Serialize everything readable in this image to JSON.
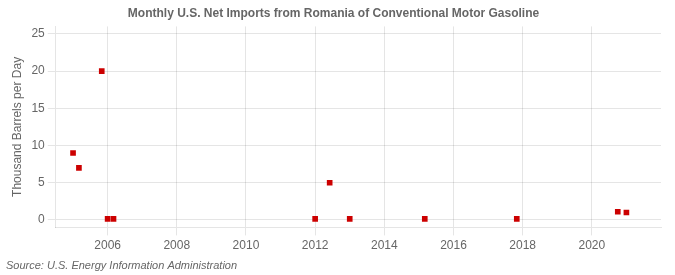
{
  "chart_data": {
    "type": "scatter",
    "title": "Monthly U.S. Net Imports from Romania of Conventional Motor Gasoline",
    "ylabel": "Thousand Barrels per Day",
    "annotations": [
      "Source: U.S. Energy Information Administration"
    ],
    "x": [
      2005.0,
      2005.17,
      2005.83,
      2006.0,
      2006.17,
      2012.0,
      2012.42,
      2013.0,
      2015.17,
      2017.83,
      2020.75,
      2021.0
    ],
    "values": [
      9.0,
      7.0,
      20.0,
      0.15,
      0.15,
      0.15,
      5.0,
      0.15,
      0.15,
      0.15,
      1.1,
      1.0
    ],
    "color": "#cc0000",
    "marker": "square",
    "xlim": [
      2004.5,
      2022.0
    ],
    "ylim": [
      -1,
      26
    ],
    "xticks": [
      2006,
      2008,
      2010,
      2012,
      2014,
      2016,
      2018,
      2020
    ],
    "yticks": [
      0,
      5,
      10,
      15,
      20,
      25
    ],
    "grid": true
  }
}
